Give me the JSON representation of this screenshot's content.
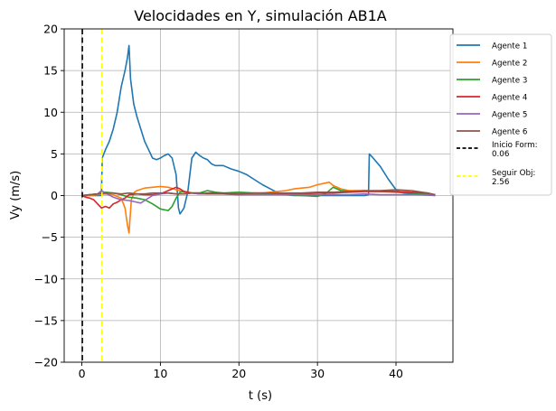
{
  "chart_data": {
    "type": "line",
    "title": "Velocidades en Y, simulación AB1A",
    "xlabel": "t (s)",
    "ylabel": "Vy (m/s)",
    "xlim": [
      -2.25,
      47.25
    ],
    "ylim": [
      -20,
      20
    ],
    "xticks": [
      0,
      10,
      20,
      30,
      40
    ],
    "yticks": [
      -20,
      -15,
      -10,
      -5,
      0,
      5,
      10,
      15,
      20
    ],
    "xtick_labels": [
      "0",
      "10",
      "20",
      "30",
      "40"
    ],
    "ytick_labels": [
      "−20",
      "−15",
      "−10",
      "−5",
      "0",
      "5",
      "10",
      "15",
      "20"
    ],
    "grid": true,
    "legend_position": "upper right, outside plot",
    "series": [
      {
        "name": "Agente 1",
        "color": "#1f77b4",
        "x": [
          0,
          0.8,
          1.5,
          2.2,
          2.4,
          2.5,
          2.6,
          3.0,
          3.5,
          4.0,
          4.5,
          5.0,
          5.5,
          5.8,
          6.0,
          6.2,
          6.6,
          7.0,
          7.5,
          8.0,
          8.5,
          9.0,
          9.5,
          10.0,
          10.5,
          11.0,
          11.5,
          12.0,
          12.3,
          12.5,
          12.8,
          13.0,
          13.5,
          14.0,
          14.5,
          15.0,
          15.5,
          16.0,
          16.5,
          17.0,
          18.0,
          19.0,
          20.0,
          21.0,
          22.0,
          23.0,
          24.0,
          25.0,
          26.0,
          27.0,
          28.0,
          30.0,
          32.0,
          34.0,
          36.0,
          36.5,
          36.6,
          37.0,
          38.0,
          39.0,
          40.0,
          40.5,
          41.0,
          42.0,
          43.0,
          44.0,
          45.0
        ],
        "y": [
          0,
          0,
          0,
          0,
          0,
          0.5,
          4.5,
          5.5,
          6.5,
          8.0,
          10.0,
          13.0,
          15.0,
          16.5,
          18.0,
          14.0,
          11.0,
          9.5,
          8.0,
          6.5,
          5.5,
          4.5,
          4.3,
          4.5,
          4.8,
          5.0,
          4.5,
          2.5,
          -1.5,
          -2.2,
          -1.8,
          -1.5,
          0.5,
          4.5,
          5.2,
          4.8,
          4.5,
          4.3,
          3.8,
          3.6,
          3.6,
          3.2,
          2.9,
          2.5,
          1.9,
          1.3,
          0.8,
          0.3,
          0.1,
          0,
          0,
          0,
          0,
          0,
          0,
          0.1,
          5.0,
          4.6,
          3.5,
          2.0,
          0.7,
          0.4,
          0.3,
          0.2,
          0.1,
          0.05,
          0
        ]
      },
      {
        "name": "Agente 2",
        "color": "#ff7f0e",
        "x": [
          0,
          1,
          2,
          3,
          4,
          5,
          5.5,
          5.8,
          6.0,
          6.3,
          6.7,
          7,
          8,
          9,
          10,
          11,
          12,
          13,
          14,
          15,
          16,
          18,
          20,
          22,
          24,
          26,
          27,
          28,
          29,
          30,
          31,
          31.5,
          32,
          33,
          34,
          36,
          38,
          40,
          42,
          44,
          45
        ],
        "y": [
          0,
          0,
          0.1,
          0.2,
          0.1,
          -0.3,
          -1.5,
          -3.5,
          -4.5,
          -0.5,
          0.4,
          0.6,
          0.9,
          1.0,
          1.1,
          1.0,
          0.7,
          0.4,
          0.3,
          0.3,
          0.2,
          0.2,
          0.1,
          0.2,
          0.4,
          0.6,
          0.8,
          0.9,
          1.0,
          1.3,
          1.5,
          1.6,
          1.2,
          0.8,
          0.6,
          0.6,
          0.5,
          0.5,
          0.4,
          0.2,
          0.1
        ]
      },
      {
        "name": "Agente 3",
        "color": "#2ca02c",
        "x": [
          0,
          1,
          2,
          3,
          4,
          5,
          6,
          7,
          8,
          9,
          10,
          11,
          11.5,
          12,
          12.5,
          13,
          14,
          15,
          16,
          17,
          18,
          20,
          22,
          24,
          26,
          28,
          30,
          31,
          32,
          32.5,
          33,
          34,
          36,
          38,
          40,
          42,
          44,
          45
        ],
        "y": [
          0,
          0.1,
          0.2,
          0.4,
          0.3,
          0.1,
          -0.2,
          -0.3,
          -0.5,
          -1.0,
          -1.6,
          -1.8,
          -1.3,
          -0.3,
          0.4,
          0.5,
          0.3,
          0.3,
          0.6,
          0.4,
          0.3,
          0.4,
          0.3,
          0.2,
          0.1,
          0,
          -0.1,
          0.2,
          1.0,
          0.8,
          0.6,
          0.5,
          0.5,
          0.5,
          0.4,
          0.3,
          0.2,
          0.1
        ]
      },
      {
        "name": "Agente 4",
        "color": "#d62728",
        "x": [
          0,
          0.5,
          1,
          1.5,
          2,
          2.5,
          3,
          3.5,
          4,
          4.5,
          5,
          5.5,
          6,
          7,
          8,
          9,
          10,
          11,
          12,
          12.5,
          13,
          13.5,
          14,
          15,
          16,
          18,
          20,
          22,
          24,
          26,
          28,
          30,
          32,
          34,
          36,
          38,
          40,
          42,
          44,
          45
        ],
        "y": [
          0,
          -0.2,
          -0.3,
          -0.5,
          -1.0,
          -1.5,
          -1.3,
          -1.5,
          -1.0,
          -0.8,
          -0.5,
          -0.3,
          0.1,
          0.2,
          0.1,
          0.1,
          0.2,
          0.6,
          1.0,
          0.8,
          0.5,
          0.4,
          0.3,
          0.2,
          0.3,
          0.3,
          0.2,
          0.3,
          0.3,
          0.2,
          0.2,
          0.3,
          0.3,
          0.4,
          0.5,
          0.5,
          0.5,
          0.4,
          0.3,
          0.1
        ]
      },
      {
        "name": "Agente 5",
        "color": "#9467bd",
        "x": [
          0,
          1,
          2,
          2.5,
          3,
          4,
          5,
          6,
          7,
          7.5,
          8,
          9,
          10,
          11,
          12,
          13,
          14,
          15,
          16,
          18,
          20,
          22,
          24,
          26,
          28,
          30,
          32,
          34,
          36,
          38,
          40,
          42,
          44,
          45
        ],
        "y": [
          0,
          0.1,
          0.2,
          0.6,
          0.3,
          -0.2,
          -0.5,
          -0.6,
          -0.8,
          -0.9,
          -0.6,
          0,
          0.2,
          0.3,
          0.2,
          0.2,
          0.3,
          0.2,
          0.2,
          0.2,
          0.1,
          0.1,
          0.1,
          0.1,
          0.1,
          0.1,
          0.1,
          0.1,
          0.2,
          0.1,
          0.1,
          0.1,
          0.1,
          0
        ]
      },
      {
        "name": "Agente 6",
        "color": "#8c564b",
        "x": [
          0,
          1,
          2,
          3,
          4,
          5,
          6,
          7,
          8,
          9,
          10,
          11,
          12,
          13,
          14,
          15,
          16,
          18,
          20,
          22,
          24,
          26,
          28,
          30,
          32,
          34,
          36,
          38,
          40,
          42,
          44,
          45
        ],
        "y": [
          0,
          0.1,
          0.2,
          0.3,
          0.3,
          0.2,
          0.3,
          0.2,
          0.2,
          0.3,
          0.3,
          0.3,
          0.2,
          0.2,
          0.3,
          0.3,
          0.2,
          0.2,
          0.2,
          0.3,
          0.3,
          0.3,
          0.3,
          0.4,
          0.4,
          0.5,
          0.6,
          0.6,
          0.7,
          0.6,
          0.3,
          0.1
        ]
      }
    ],
    "vlines": [
      {
        "label": "Inicio Form:\n0.06",
        "x": 0.06,
        "color": "#000000"
      },
      {
        "label": "Seguir Obj:\n2.56",
        "x": 2.56,
        "color": "#ffff00"
      }
    ]
  }
}
